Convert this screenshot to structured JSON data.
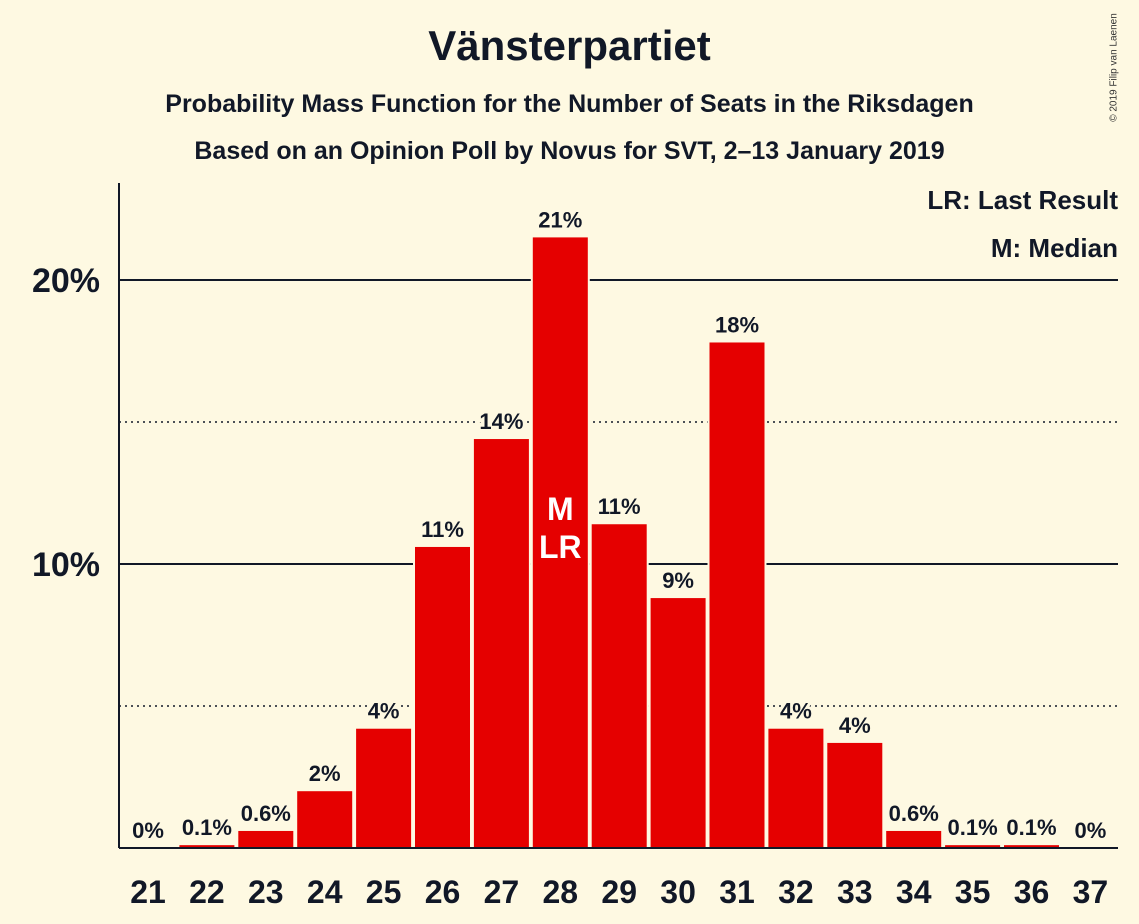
{
  "title": "Vänsterpartiet",
  "subtitle": "Probability Mass Function for the Number of Seats in the Riksdagen",
  "source": "Based on an Opinion Poll by Novus for SVT, 2–13 January 2019",
  "copyright": "© 2019 Filip van Laenen",
  "legend": {
    "last_result": "LR: Last Result",
    "median": "M: Median"
  },
  "colors": {
    "bar": "#e50000",
    "background": "#fef9e2",
    "text": "#111827"
  },
  "chart_data": {
    "type": "bar",
    "categories": [
      "21",
      "22",
      "23",
      "24",
      "25",
      "26",
      "27",
      "28",
      "29",
      "30",
      "31",
      "32",
      "33",
      "34",
      "35",
      "36",
      "37"
    ],
    "values": [
      0,
      0.1,
      0.6,
      2.0,
      4.2,
      10.6,
      14.4,
      21.5,
      11.4,
      8.8,
      17.8,
      4.2,
      3.7,
      0.6,
      0.1,
      0.1,
      0
    ],
    "labels": [
      "0%",
      "0.1%",
      "0.6%",
      "2%",
      "4%",
      "11%",
      "14%",
      "21%",
      "11%",
      "9%",
      "18%",
      "4%",
      "4%",
      "0.6%",
      "0.1%",
      "0.1%",
      "0%"
    ],
    "y_ticks": [
      {
        "value": 10,
        "label": "10%"
      },
      {
        "value": 20,
        "label": "20%"
      }
    ],
    "dotted_gridlines": [
      5,
      15
    ],
    "ylim": [
      0,
      23.5
    ],
    "median_category": "28",
    "last_result_category": "28",
    "median_marker": "M",
    "last_result_marker": "LR",
    "grid": true,
    "legend_placement": "top-right"
  }
}
